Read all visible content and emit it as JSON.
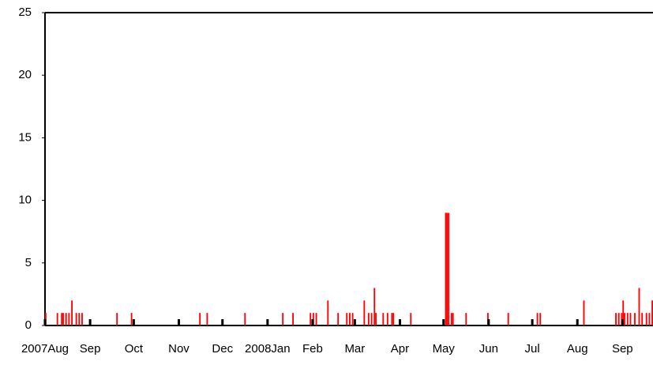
{
  "chart_data": {
    "type": "bar",
    "color": "#ff0000",
    "x": [
      0,
      8,
      11,
      12,
      14,
      16,
      18,
      21,
      23,
      25,
      49,
      59,
      106,
      111,
      137,
      163,
      170,
      182,
      184,
      186,
      194,
      201,
      207,
      209,
      211,
      219,
      222,
      224,
      226,
      227,
      232,
      235,
      238,
      239,
      251,
      275,
      276,
      277,
      279,
      280,
      289,
      304,
      318,
      338,
      340,
      370,
      392,
      394,
      396,
      397,
      398,
      400,
      402,
      405,
      408,
      410,
      413,
      415,
      417
    ],
    "values": [
      1,
      1,
      1,
      1,
      1,
      1,
      2,
      1,
      1,
      1,
      1,
      1,
      1,
      1,
      1,
      1,
      1,
      1,
      1,
      1,
      2,
      1,
      1,
      1,
      1,
      2,
      1,
      1,
      3,
      1,
      1,
      1,
      1,
      1,
      1,
      9,
      9,
      9,
      1,
      1,
      1,
      1,
      1,
      1,
      1,
      2,
      1,
      1,
      1,
      2,
      1,
      1,
      1,
      1,
      3,
      1,
      1,
      1,
      2
    ],
    "xlim": [
      0,
      418
    ],
    "ylim": [
      0,
      25
    ],
    "yticks": [
      0,
      5,
      10,
      15,
      20,
      25
    ],
    "xticks": [
      {
        "value": 0,
        "label": "2007Aug"
      },
      {
        "value": 31,
        "label": "Sep"
      },
      {
        "value": 61,
        "label": "Oct"
      },
      {
        "value": 92,
        "label": "Nov"
      },
      {
        "value": 122,
        "label": "Dec"
      },
      {
        "value": 153,
        "label": "2008Jan"
      },
      {
        "value": 184,
        "label": "Feb"
      },
      {
        "value": 213,
        "label": "Mar"
      },
      {
        "value": 244,
        "label": "Apr"
      },
      {
        "value": 274,
        "label": "May"
      },
      {
        "value": 305,
        "label": "Jun"
      },
      {
        "value": 335,
        "label": "Jul"
      },
      {
        "value": 366,
        "label": "Aug"
      },
      {
        "value": 397,
        "label": "Sep"
      }
    ]
  }
}
